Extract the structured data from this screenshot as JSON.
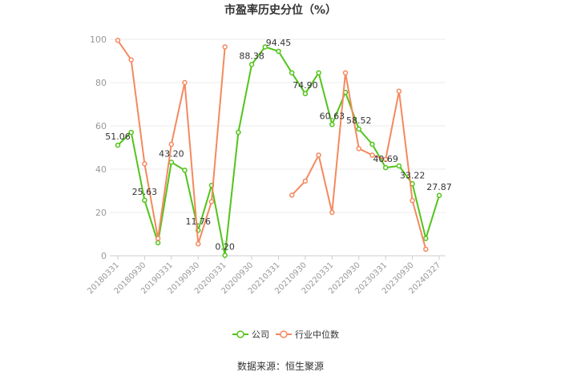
{
  "chart_data": {
    "type": "line",
    "title": "市盈率历史分位（%）",
    "xlabel": "",
    "ylabel": "",
    "ylim": [
      0,
      100
    ],
    "yticks": [
      0,
      20,
      40,
      60,
      80,
      100
    ],
    "grid": true,
    "legend_position": "bottom-center",
    "tick_labels": [
      "20180331",
      "20180930",
      "20190331",
      "20190930",
      "20200331",
      "20200930",
      "20210331",
      "20210930",
      "20220331",
      "20220930",
      "20230331",
      "20230930",
      "20240327"
    ],
    "x": [
      "20180331",
      "20180630",
      "20180930",
      "20181231",
      "20190331",
      "20190630",
      "20190930",
      "20191231",
      "20200331",
      "20200630",
      "20200930",
      "20201231",
      "20210331",
      "20210630",
      "20210930",
      "20211231",
      "20220331",
      "20220630",
      "20220930",
      "20221231",
      "20230331",
      "20230630",
      "20230930",
      "20231231",
      "20240327"
    ],
    "series": [
      {
        "name": "公司",
        "color": "#52c41a",
        "values": [
          51.06,
          57,
          25.63,
          6,
          43.2,
          39.5,
          11.76,
          32.5,
          0.2,
          57,
          88.38,
          96.5,
          94.45,
          84.5,
          74.9,
          84.5,
          60.63,
          75.5,
          58.52,
          51.5,
          40.69,
          41.5,
          33.22,
          8,
          27.87
        ],
        "labels": {
          "0": "51.06",
          "2": "25.63",
          "4": "43.20",
          "6": "11.76",
          "8": "0.20",
          "10": "88.38",
          "12": "94.45",
          "14": "74.90",
          "16": "60.63",
          "18": "58.52",
          "20": "40.69",
          "22": "33.22",
          "24": "27.87"
        }
      },
      {
        "name": "行业中位数",
        "color": "#f4895f",
        "values": [
          99.5,
          90.5,
          42.5,
          8,
          51.5,
          80,
          5.5,
          25,
          96.5,
          null,
          null,
          null,
          null,
          28,
          34.5,
          46.5,
          20,
          84.5,
          49.5,
          46.5,
          44.5,
          76,
          25.5,
          3,
          null
        ]
      }
    ]
  },
  "footer": {
    "source": "数据来源：恒生聚源"
  }
}
